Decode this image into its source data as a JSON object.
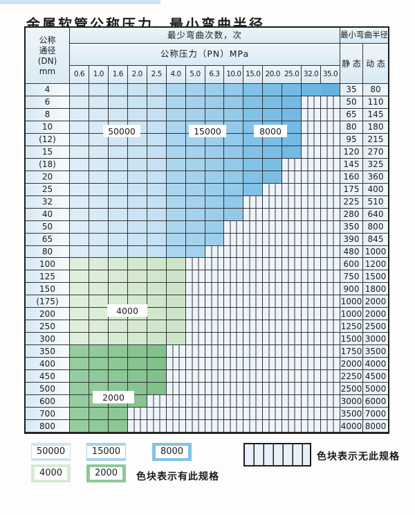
{
  "title": "金属软管公称压力、最小弯曲半径",
  "header": {
    "dn_lines": [
      "公称",
      "通径",
      "(DN)",
      "mm"
    ],
    "cycles_label": "最少弯曲次数，次",
    "pressure_label": "公称压力（PN）MPa",
    "radius_label": "最小弯曲半径",
    "static_label": "静 态",
    "dynamic_label": "动 态",
    "pressures": [
      "0.6",
      "1.0",
      "1.6",
      "2.0",
      "2.5",
      "4.0",
      "5.0",
      "6.3",
      "10.0",
      "15.0",
      "20.0",
      "25.0",
      "32.0",
      "35.0"
    ]
  },
  "cycle_labels": [
    {
      "id": "b50000",
      "text": "50000"
    },
    {
      "id": "b15000",
      "text": "15000"
    },
    {
      "id": "b8000",
      "text": "8000"
    },
    {
      "id": "g4000",
      "text": "4000"
    },
    {
      "id": "g2000",
      "text": "2000"
    }
  ],
  "rows": [
    {
      "dn": "4",
      "zone": "blue",
      "colored_through": 13,
      "static": "35",
      "dynamic": "80"
    },
    {
      "dn": "6",
      "zone": "blue",
      "colored_through": 11,
      "static": "50",
      "dynamic": "110"
    },
    {
      "dn": "8",
      "zone": "blue",
      "colored_through": 11,
      "static": "65",
      "dynamic": "145"
    },
    {
      "dn": "10",
      "zone": "blue",
      "colored_through": 11,
      "static": "80",
      "dynamic": "180"
    },
    {
      "dn": "(12)",
      "zone": "blue",
      "colored_through": 11,
      "static": "95",
      "dynamic": "215"
    },
    {
      "dn": "15",
      "zone": "blue",
      "colored_through": 11,
      "static": "120",
      "dynamic": "270"
    },
    {
      "dn": "(18)",
      "zone": "blue",
      "colored_through": 10,
      "static": "145",
      "dynamic": "325"
    },
    {
      "dn": "20",
      "zone": "blue",
      "colored_through": 10,
      "static": "160",
      "dynamic": "360"
    },
    {
      "dn": "25",
      "zone": "blue",
      "colored_through": 9,
      "static": "175",
      "dynamic": "400"
    },
    {
      "dn": "32",
      "zone": "blue",
      "colored_through": 8,
      "static": "225",
      "dynamic": "510"
    },
    {
      "dn": "40",
      "zone": "blue",
      "colored_through": 8,
      "static": "280",
      "dynamic": "640"
    },
    {
      "dn": "50",
      "zone": "blue",
      "colored_through": 7,
      "static": "350",
      "dynamic": "800"
    },
    {
      "dn": "65",
      "zone": "blue",
      "colored_through": 7,
      "static": "390",
      "dynamic": "845"
    },
    {
      "dn": "80",
      "zone": "blue",
      "colored_through": 6,
      "static": "480",
      "dynamic": "1000"
    },
    {
      "dn": "100",
      "zone": "green_light",
      "colored_through": 5,
      "static": "600",
      "dynamic": "1200"
    },
    {
      "dn": "125",
      "zone": "green_light",
      "colored_through": 5,
      "static": "750",
      "dynamic": "1500"
    },
    {
      "dn": "150",
      "zone": "green_light",
      "colored_through": 5,
      "static": "900",
      "dynamic": "1800"
    },
    {
      "dn": "(175)",
      "zone": "green_light",
      "colored_through": 5,
      "static": "1000",
      "dynamic": "2000"
    },
    {
      "dn": "200",
      "zone": "green_light",
      "colored_through": 5,
      "static": "1000",
      "dynamic": "2000"
    },
    {
      "dn": "250",
      "zone": "green_light",
      "colored_through": 5,
      "static": "1250",
      "dynamic": "2500"
    },
    {
      "dn": "300",
      "zone": "green_light",
      "colored_through": 5,
      "static": "1500",
      "dynamic": "3000"
    },
    {
      "dn": "350",
      "zone": "green_mid",
      "colored_through": 4,
      "static": "1750",
      "dynamic": "3500"
    },
    {
      "dn": "400",
      "zone": "green_mid",
      "colored_through": 4,
      "static": "2000",
      "dynamic": "4000"
    },
    {
      "dn": "450",
      "zone": "green_mid",
      "colored_through": 4,
      "static": "2250",
      "dynamic": "4500"
    },
    {
      "dn": "500",
      "zone": "green_mid",
      "colored_through": 4,
      "static": "2500",
      "dynamic": "5000"
    },
    {
      "dn": "600",
      "zone": "green_mid",
      "colored_through": 3,
      "static": "3000",
      "dynamic": "6000"
    },
    {
      "dn": "700",
      "zone": "green_mid",
      "colored_through": 2,
      "static": "3500",
      "dynamic": "7000"
    },
    {
      "dn": "800",
      "zone": "green_mid",
      "colored_through": 2,
      "static": "4000",
      "dynamic": "8000"
    }
  ],
  "colors": {
    "blue": [
      "#dcedf8",
      "#d6eaf7",
      "#d0e7f5",
      "#cbe4f4",
      "#c5e1f3",
      "#abd6f0",
      "#a4d2ee",
      "#9cceec",
      "#93c9ea",
      "#81c2e8",
      "#7abee6",
      "#73bae4",
      "#6cb6e2",
      "#65b2e0"
    ],
    "green_light": [
      "#e0efdc",
      "#dcedd8",
      "#d8ebd4",
      "#d4e9d0",
      "#d0e7cc",
      "#cce5c8"
    ],
    "green_mid": [
      "#96cda0",
      "#91ca9b",
      "#8cc796",
      "#87c491",
      "#82c18c"
    ],
    "hatch_bg": "#eef4fb",
    "grid_line": "#333333"
  },
  "legend": {
    "cycle_items": [
      {
        "label": "50000",
        "color": "#cbe3f5"
      },
      {
        "label": "15000",
        "color": "#a5d2ef"
      },
      {
        "label": "8000",
        "color": "#7fc2e8"
      },
      {
        "label": "4000",
        "color": "#d7ebd4"
      },
      {
        "label": "2000",
        "color": "#8cc897"
      }
    ],
    "has_spec_text": "色块表示有此规格",
    "no_spec_text": "色块表示无此规格"
  }
}
